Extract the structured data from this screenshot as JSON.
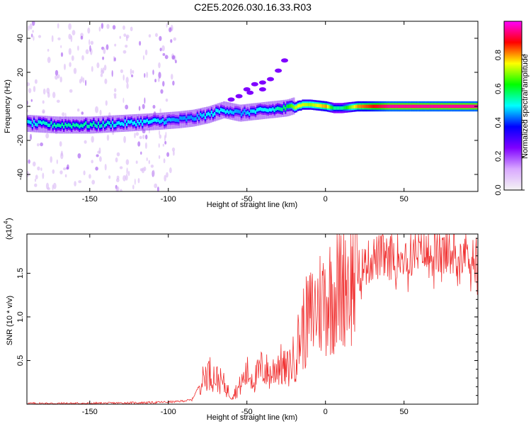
{
  "chart_data": [
    {
      "type": "heatmap",
      "title": "C2E5.2026.030.16.33.R03",
      "xlabel": "Height of straight line (km)",
      "ylabel": "Frequency (Hz)",
      "xlim": [
        -190,
        97
      ],
      "ylim": [
        -50,
        50
      ],
      "xticks": [
        -150,
        -100,
        -50,
        0,
        50
      ],
      "yticks": [
        -40,
        -20,
        0,
        20,
        40
      ],
      "colorbar": {
        "label": "Normalized spectral amplitude",
        "range": [
          0,
          1
        ],
        "ticks": [
          "0.0",
          "0.2",
          "0.4",
          "0.6",
          "0.8"
        ],
        "colors": [
          "#f4f4f4",
          "#d9a8ff",
          "#7f00ff",
          "#0000ff",
          "#00ffff",
          "#00ff00",
          "#ffff00",
          "#ff0000",
          "#ff00ff"
        ]
      },
      "track": {
        "x": [
          -190,
          -170,
          -150,
          -130,
          -110,
          -95,
          -85,
          -75,
          -65,
          -55,
          -45,
          -35,
          -25,
          -18,
          -10,
          0,
          5,
          10,
          20,
          40,
          60,
          80,
          97
        ],
        "frequency": [
          -10,
          -11,
          -11,
          -10,
          -9,
          -8,
          -7,
          -5,
          -2,
          -4,
          -3,
          -2,
          -1,
          1,
          1,
          0,
          -1,
          -1,
          0,
          0,
          0,
          0,
          0
        ],
        "amplitude": [
          0.5,
          0.55,
          0.55,
          0.5,
          0.5,
          0.45,
          0.45,
          0.5,
          0.5,
          0.45,
          0.5,
          0.5,
          0.6,
          0.75,
          0.7,
          0.8,
          0.55,
          0.55,
          0.8,
          0.95,
          0.95,
          0.95,
          0.95
        ]
      },
      "side_branches": [
        {
          "x": [
            -48,
            -40,
            -35,
            -30,
            -26
          ],
          "frequency": [
            8,
            14,
            16,
            21,
            27
          ]
        },
        {
          "x": [
            -60,
            -55,
            -50,
            -45,
            -40
          ],
          "frequency": [
            4,
            6,
            10,
            13,
            10
          ]
        }
      ]
    },
    {
      "type": "line",
      "title": "",
      "xlabel": "Height of straight line (km)",
      "ylabel": "SNR (10 * v/v)",
      "exponent_label": "(x10",
      "exponent_power": "4",
      "xlim": [
        -190,
        97
      ],
      "ylim": [
        0,
        1.95
      ],
      "xticks": [
        -150,
        -100,
        -50,
        0,
        50
      ],
      "yticks": [
        "0.5",
        "1.0",
        "1.5"
      ],
      "color": "#f03030",
      "series": [
        {
          "name": "SNR",
          "x": [
            -190,
            -150,
            -110,
            -95,
            -85,
            -75,
            -65,
            -60,
            -55,
            -50,
            -45,
            -40,
            -35,
            -30,
            -25,
            -20,
            -15,
            -10,
            -5,
            0,
            5,
            10,
            12,
            15,
            20,
            25,
            30,
            40,
            50,
            60,
            70,
            80,
            90,
            95,
            97
          ],
          "values": [
            0.01,
            0.01,
            0.02,
            0.03,
            0.05,
            0.4,
            0.25,
            0.1,
            0.2,
            0.38,
            0.3,
            0.45,
            0.35,
            0.5,
            0.4,
            0.55,
            0.9,
            1.05,
            1.2,
            1.3,
            1.35,
            1.45,
            1.62,
            1.5,
            1.55,
            1.6,
            1.7,
            1.72,
            1.75,
            1.75,
            1.75,
            1.76,
            1.78,
            1.72,
            1.7
          ]
        }
      ]
    }
  ]
}
